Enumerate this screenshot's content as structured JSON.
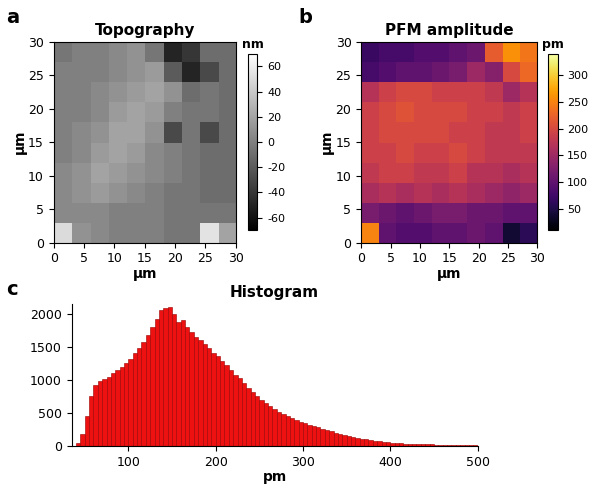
{
  "chart_data": [
    {
      "type": "heatmap",
      "title": "Topography",
      "annotations": [
        "a"
      ],
      "xlabel": "µm",
      "ylabel": "µm",
      "color": "gray",
      "xlim": [
        0,
        30
      ],
      "ylim": [
        0,
        30
      ],
      "xticks": [
        0,
        5,
        10,
        15,
        20,
        25,
        30
      ],
      "yticks": [
        0,
        5,
        10,
        15,
        20,
        25,
        30
      ],
      "cells": [
        [
          50,
          10,
          5,
          0,
          0,
          0,
          -5,
          -5,
          55,
          20
        ],
        [
          5,
          5,
          5,
          0,
          0,
          0,
          -5,
          -5,
          -5,
          -5
        ],
        [
          5,
          10,
          15,
          10,
          5,
          0,
          -5,
          -5,
          -10,
          -10
        ],
        [
          5,
          10,
          20,
          15,
          10,
          5,
          0,
          -5,
          -10,
          -10
        ],
        [
          0,
          5,
          15,
          20,
          15,
          5,
          0,
          -5,
          -10,
          -10
        ],
        [
          0,
          5,
          10,
          20,
          20,
          10,
          -30,
          -5,
          -30,
          -10
        ],
        [
          0,
          0,
          5,
          15,
          20,
          15,
          0,
          -5,
          -5,
          -10
        ],
        [
          0,
          0,
          5,
          10,
          15,
          20,
          10,
          -10,
          -5,
          -10
        ],
        [
          0,
          0,
          0,
          5,
          10,
          15,
          -20,
          -50,
          -30,
          -10
        ],
        [
          -5,
          0,
          0,
          5,
          10,
          -5,
          -50,
          -40,
          -10,
          -10
        ]
      ],
      "colorbar": {
        "label": "nm",
        "range": [
          -70,
          70
        ],
        "ticks": [
          -60,
          -40,
          -20,
          0,
          20,
          40,
          60
        ]
      }
    },
    {
      "type": "heatmap",
      "title": "PFM amplitude",
      "annotations": [
        "b"
      ],
      "xlabel": "µm",
      "ylabel": "µm",
      "color": "inferno",
      "xlim": [
        0,
        30
      ],
      "ylim": [
        0,
        30
      ],
      "xticks": [
        0,
        5,
        10,
        15,
        20,
        25,
        30
      ],
      "yticks": [
        0,
        5,
        10,
        15,
        20,
        25,
        30
      ],
      "cells": [
        [
          250,
          100,
          90,
          90,
          100,
          100,
          110,
          100,
          40,
          60
        ],
        [
          120,
          110,
          100,
          110,
          120,
          120,
          110,
          110,
          100,
          100
        ],
        [
          160,
          170,
          160,
          170,
          160,
          170,
          160,
          150,
          140,
          150
        ],
        [
          180,
          190,
          190,
          180,
          180,
          190,
          170,
          170,
          160,
          170
        ],
        [
          190,
          190,
          200,
          190,
          190,
          200,
          190,
          180,
          180,
          180
        ],
        [
          190,
          200,
          200,
          200,
          200,
          190,
          190,
          180,
          180,
          190
        ],
        [
          190,
          200,
          210,
          200,
          200,
          200,
          190,
          190,
          180,
          190
        ],
        [
          170,
          190,
          200,
          200,
          190,
          190,
          190,
          180,
          150,
          170
        ],
        [
          80,
          90,
          100,
          100,
          110,
          120,
          150,
          130,
          200,
          230
        ],
        [
          70,
          80,
          80,
          90,
          90,
          100,
          110,
          220,
          260,
          240
        ]
      ],
      "colorbar": {
        "label": "pm",
        "range": [
          10,
          340
        ],
        "ticks": [
          50,
          100,
          150,
          200,
          250,
          300
        ]
      }
    },
    {
      "type": "histogram",
      "title": "Histogram",
      "annotations": [
        "c"
      ],
      "xlabel": "pm",
      "color": "#ee1111",
      "xlim": [
        35,
        500
      ],
      "ylim": [
        0,
        2150
      ],
      "xticks": [
        100,
        200,
        300,
        400,
        500
      ],
      "yticks": [
        0,
        500,
        1000,
        1500,
        2000
      ],
      "bins": [
        0,
        5,
        10,
        15,
        20,
        25,
        30,
        35,
        40,
        45,
        50,
        55,
        60,
        65,
        70,
        75,
        80,
        85,
        90,
        95,
        100,
        105,
        110,
        115,
        120,
        125,
        130,
        135,
        140,
        145,
        150,
        155,
        160,
        165,
        170,
        175,
        180,
        185,
        190,
        195,
        200,
        205,
        210,
        215,
        220,
        225,
        230,
        235,
        240,
        245,
        250,
        255,
        260,
        265,
        270,
        275,
        280,
        285,
        290,
        295,
        300,
        305,
        310,
        315,
        320,
        325,
        330,
        335,
        340,
        345,
        350,
        355,
        360,
        365,
        370,
        375,
        380,
        385,
        390,
        395,
        400,
        405,
        410,
        415,
        420,
        425,
        430,
        435,
        440,
        445,
        450,
        455,
        460,
        465,
        470,
        475,
        480,
        485,
        490,
        495,
        500
      ],
      "counts": [
        0,
        0,
        0,
        0,
        0,
        0,
        0,
        0,
        40,
        180,
        450,
        750,
        920,
        980,
        1010,
        1050,
        1100,
        1150,
        1200,
        1260,
        1320,
        1400,
        1480,
        1570,
        1680,
        1800,
        1920,
        2050,
        2080,
        2100,
        2000,
        1870,
        1900,
        1800,
        1730,
        1650,
        1600,
        1540,
        1480,
        1400,
        1360,
        1290,
        1220,
        1150,
        1080,
        1020,
        950,
        880,
        820,
        760,
        700,
        650,
        600,
        560,
        520,
        480,
        450,
        420,
        390,
        360,
        340,
        320,
        300,
        280,
        260,
        240,
        220,
        200,
        185,
        170,
        155,
        140,
        125,
        110,
        100,
        90,
        80,
        70,
        62,
        55,
        50,
        45,
        40,
        36,
        33,
        30,
        28,
        26,
        24,
        22,
        21,
        20,
        19,
        18,
        17,
        16,
        15,
        15,
        14,
        14
      ]
    }
  ]
}
